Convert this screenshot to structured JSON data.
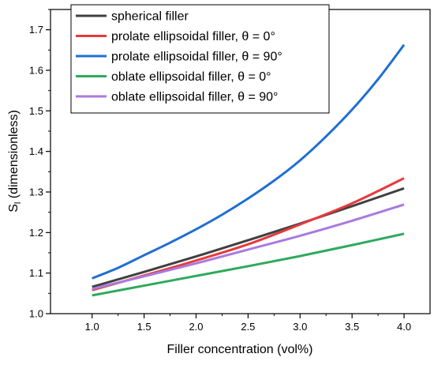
{
  "chart_data": {
    "type": "line",
    "title": "",
    "xlabel": "Filler concentration (vol%)",
    "ylabel_main": "S",
    "ylabel_sub": "l",
    "ylabel_rest": " (dimensionless)",
    "xlim": [
      0.6,
      4.25
    ],
    "ylim": [
      1.0,
      1.75
    ],
    "xticks": [
      "1.0",
      "1.5",
      "2.0",
      "2.5",
      "3.0",
      "3.5",
      "4.0"
    ],
    "yticks": [
      "1.0",
      "1.1",
      "1.2",
      "1.3",
      "1.4",
      "1.5",
      "1.6",
      "1.7"
    ],
    "legend_position": "top-left",
    "grid": false,
    "series": [
      {
        "name": "spherical filler",
        "color": "#404040",
        "x": [
          1.0,
          1.5,
          2.0,
          2.5,
          3.0,
          3.5,
          4.0
        ],
        "y": [
          1.066,
          1.103,
          1.141,
          1.181,
          1.222,
          1.265,
          1.309
        ]
      },
      {
        "name": "prolate ellipsoidal filler, θ = 0°",
        "color": "#e8393b",
        "x": [
          1.0,
          1.5,
          2.0,
          2.5,
          3.0,
          3.5,
          4.0
        ],
        "y": [
          1.058,
          1.094,
          1.131,
          1.171,
          1.22,
          1.272,
          1.334
        ]
      },
      {
        "name": "prolate ellipsoidal filler, θ = 90°",
        "color": "#1f6fd1",
        "x": [
          1.0,
          1.25,
          1.5,
          1.75,
          2.0,
          2.25,
          2.5,
          2.75,
          3.0,
          3.25,
          3.5,
          3.75,
          4.0
        ],
        "y": [
          1.087,
          1.113,
          1.144,
          1.175,
          1.208,
          1.244,
          1.284,
          1.328,
          1.378,
          1.437,
          1.503,
          1.578,
          1.663
        ]
      },
      {
        "name": "oblate ellipsoidal filler, θ = 0°",
        "color": "#2eaa5c",
        "x": [
          1.0,
          1.5,
          2.0,
          2.5,
          3.0,
          3.5,
          4.0
        ],
        "y": [
          1.045,
          1.069,
          1.093,
          1.117,
          1.142,
          1.169,
          1.197
        ]
      },
      {
        "name": "oblate ellipsoidal filler, θ = 90°",
        "color": "#a97ae0",
        "x": [
          1.0,
          1.5,
          2.0,
          2.5,
          3.0,
          3.5,
          4.0
        ],
        "y": [
          1.061,
          1.092,
          1.124,
          1.158,
          1.192,
          1.229,
          1.269
        ]
      }
    ]
  }
}
